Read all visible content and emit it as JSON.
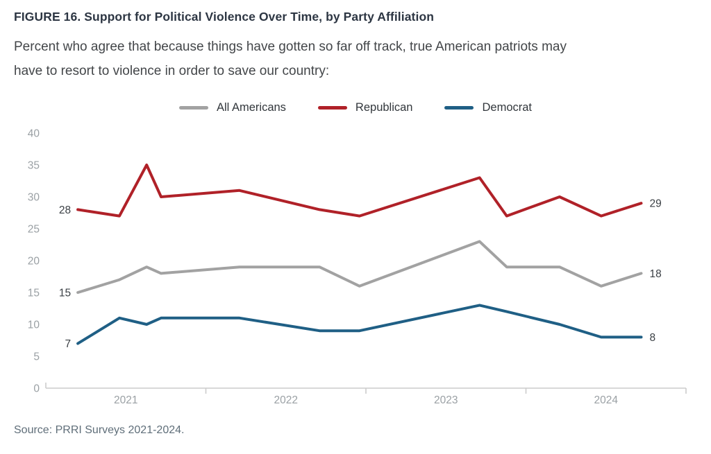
{
  "header": {
    "title": "FIGURE 16.  Support for Political Violence Over Time, by Party Affiliation",
    "subtitle_line1": "Percent who agree that because things have gotten so far off track, true American patriots may",
    "subtitle_line2": "have to resort to violence in order to save our country:"
  },
  "source": "Source: PRRI Surveys 2021-2024.",
  "colors": {
    "all_americans": "#a2a2a2",
    "republican": "#b02128",
    "democrat": "#1f5f85",
    "axis": "#cccccc",
    "tick_text": "#9aa0a4",
    "point_label_text": "#3a3f44"
  },
  "chart_data": {
    "type": "line",
    "x": [
      2021.2,
      2021.46,
      2021.63,
      2021.72,
      2022.21,
      2022.71,
      2022.96,
      2023.71,
      2023.88,
      2024.21,
      2024.47,
      2024.72
    ],
    "series": [
      {
        "name": "All Americans",
        "color": "#a2a2a2",
        "values": [
          15,
          17,
          19,
          18,
          19,
          19,
          16,
          23,
          19,
          19,
          16,
          18
        ]
      },
      {
        "name": "Republican",
        "color": "#b02128",
        "values": [
          28,
          27,
          35,
          30,
          31,
          28,
          27,
          33,
          27,
          30,
          27,
          29
        ]
      },
      {
        "name": "Democrat",
        "color": "#1f5f85",
        "values": [
          7,
          11,
          10,
          11,
          11,
          9,
          9,
          13,
          12,
          10,
          8,
          8
        ]
      }
    ],
    "first_point_labels": [
      "15",
      "28",
      "7"
    ],
    "last_point_labels": [
      "18",
      "29",
      "8"
    ],
    "y_ticks": [
      40,
      35,
      30,
      25,
      20,
      15,
      10,
      5,
      0
    ],
    "x_tick_years": [
      2021,
      2022,
      2023,
      2024,
      2025
    ],
    "x_labels": [
      "2021",
      "2022",
      "2023",
      "2024"
    ],
    "ylim": [
      0,
      40
    ],
    "xlim": [
      2021.0,
      2025.0
    ],
    "grid": "off",
    "legend_position": "top-center"
  }
}
